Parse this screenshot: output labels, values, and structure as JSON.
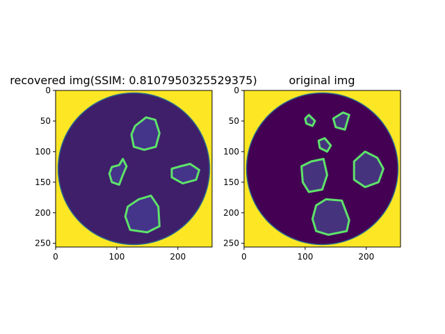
{
  "chart_data": [
    {
      "type": "image",
      "title": "recovered img(SSIM: 0.8107950325529375)",
      "x_ticks": [
        0,
        100,
        200
      ],
      "y_ticks": [
        0,
        50,
        100,
        150,
        200,
        250
      ],
      "xlim": [
        0,
        256
      ],
      "ylim": [
        256,
        0
      ],
      "colors": {
        "background": "#fde725",
        "disc": "#3f1f6a",
        "rim": "#2c6e8e",
        "blob_fill": "#44358a",
        "edge": "#5ee36a"
      },
      "blobs": [
        {
          "name": "upper",
          "points": [
            [
              130,
              58
            ],
            [
              148,
              44
            ],
            [
              163,
              48
            ],
            [
              170,
              70
            ],
            [
              164,
              92
            ],
            [
              145,
              97
            ],
            [
              128,
              92
            ],
            [
              124,
              72
            ]
          ]
        },
        {
          "name": "left",
          "points": [
            [
              92,
              125
            ],
            [
              104,
              122
            ],
            [
              110,
              112
            ],
            [
              116,
              124
            ],
            [
              110,
              138
            ],
            [
              104,
              154
            ],
            [
              92,
              150
            ],
            [
              88,
              136
            ]
          ]
        },
        {
          "name": "right",
          "points": [
            [
              190,
              128
            ],
            [
              204,
              124
            ],
            [
              220,
              120
            ],
            [
              235,
              130
            ],
            [
              230,
              146
            ],
            [
              208,
              152
            ],
            [
              190,
              142
            ]
          ]
        },
        {
          "name": "lower",
          "points": [
            [
              118,
              190
            ],
            [
              136,
              178
            ],
            [
              156,
              172
            ],
            [
              168,
              190
            ],
            [
              170,
              222
            ],
            [
              150,
              232
            ],
            [
              122,
              228
            ],
            [
              114,
              206
            ]
          ]
        }
      ]
    },
    {
      "type": "image",
      "title": "original img",
      "x_ticks": [
        0,
        100,
        200
      ],
      "y_ticks": [
        0,
        50,
        100,
        150,
        200,
        250
      ],
      "xlim": [
        0,
        256
      ],
      "ylim": [
        256,
        0
      ],
      "colors": {
        "background": "#fde725",
        "disc": "#440154",
        "rim": "#2c6e8e",
        "blob_fill": "#46337e",
        "edge": "#5ee36a"
      },
      "blobs": [
        {
          "name": "tiny-left",
          "points": [
            [
              100,
              46
            ],
            [
              106,
              40
            ],
            [
              116,
              50
            ],
            [
              112,
              58
            ],
            [
              102,
              54
            ]
          ]
        },
        {
          "name": "top-right",
          "points": [
            [
              146,
              46
            ],
            [
              162,
              36
            ],
            [
              172,
              40
            ],
            [
              165,
              64
            ],
            [
              150,
              60
            ]
          ]
        },
        {
          "name": "small-mid",
          "points": [
            [
              122,
              82
            ],
            [
              132,
              78
            ],
            [
              142,
              90
            ],
            [
              136,
              100
            ],
            [
              124,
              94
            ]
          ]
        },
        {
          "name": "left",
          "points": [
            [
              94,
              124
            ],
            [
              110,
              116
            ],
            [
              130,
              112
            ],
            [
              136,
              138
            ],
            [
              128,
              162
            ],
            [
              106,
              166
            ],
            [
              96,
              150
            ]
          ]
        },
        {
          "name": "right",
          "points": [
            [
              180,
              116
            ],
            [
              198,
              100
            ],
            [
              218,
              110
            ],
            [
              228,
              128
            ],
            [
              220,
              150
            ],
            [
              198,
              158
            ],
            [
              180,
              146
            ]
          ]
        },
        {
          "name": "lower",
          "points": [
            [
              118,
              188
            ],
            [
              134,
              178
            ],
            [
              160,
              180
            ],
            [
              172,
              212
            ],
            [
              168,
              230
            ],
            [
              138,
              236
            ],
            [
              118,
              230
            ],
            [
              112,
              210
            ]
          ]
        }
      ]
    }
  ]
}
